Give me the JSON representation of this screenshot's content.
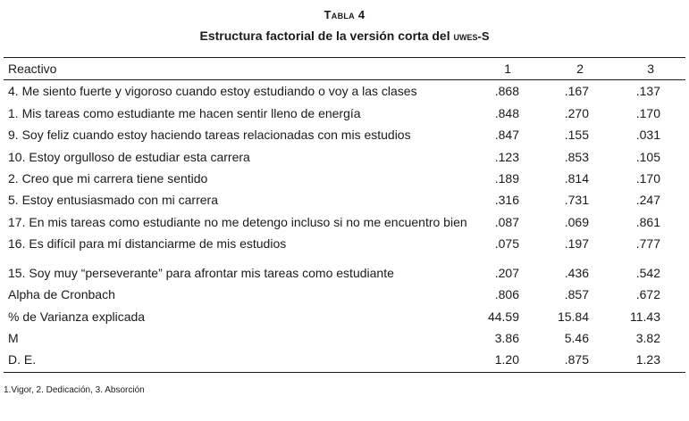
{
  "table": {
    "label": "Tabla 4",
    "caption_prefix": "Estructura factorial de la versión corta del ",
    "caption_abbrev": "uwes-S",
    "header": {
      "item": "Reactivo",
      "col1": "1",
      "col2": "2",
      "col3": "3"
    },
    "rows": [
      {
        "label": "4. Me siento fuerte y vigoroso cuando estoy estudiando o voy a las clases",
        "v1": ".868",
        "v2": ".167",
        "v3": ".137"
      },
      {
        "label": "1. Mis tareas como estudiante me hacen sentir lleno de energía",
        "v1": ".848",
        "v2": ".270",
        "v3": ".170"
      },
      {
        "label": "9. Soy feliz cuando estoy haciendo tareas relacionadas con mis estudios",
        "v1": ".847",
        "v2": ".155",
        "v3": ".031"
      },
      {
        "label": "10. Estoy orgulloso de estudiar esta carrera",
        "v1": ".123",
        "v2": ".853",
        "v3": ".105"
      },
      {
        "label": "2. Creo que mi carrera tiene sentido",
        "v1": ".189",
        "v2": ".814",
        "v3": ".170"
      },
      {
        "label": "5. Estoy entusiasmado con mi carrera",
        "v1": ".316",
        "v2": ".731",
        "v3": ".247"
      },
      {
        "label": "17. En mis tareas como estudiante no me detengo incluso si no me encuentro bien",
        "v1": ".087",
        "v2": ".069",
        "v3": ".861"
      },
      {
        "label": "16. Es difícil para mí distanciarme de mis estudios",
        "v1": ".075",
        "v2": ".197",
        "v3": ".777"
      },
      {
        "label": "15. Soy muy “perseverante” para afrontar mis tareas como estudiante",
        "v1": ".207",
        "v2": ".436",
        "v3": ".542"
      },
      {
        "label": "Alpha de Cronbach",
        "v1": ".806",
        "v2": ".857",
        "v3": ".672"
      },
      {
        "label": "% de Varianza explicada",
        "v1": "44.59",
        "v2": "15.84",
        "v3": "11.43"
      },
      {
        "label": "M",
        "v1": "3.86",
        "v2": "5.46",
        "v3": "3.82"
      },
      {
        "label": "D. E.",
        "v1": "1.20",
        "v2": ".875",
        "v3": "1.23"
      }
    ],
    "footnote": "1.Vigor, 2. Dedicación, 3. Absorción"
  }
}
